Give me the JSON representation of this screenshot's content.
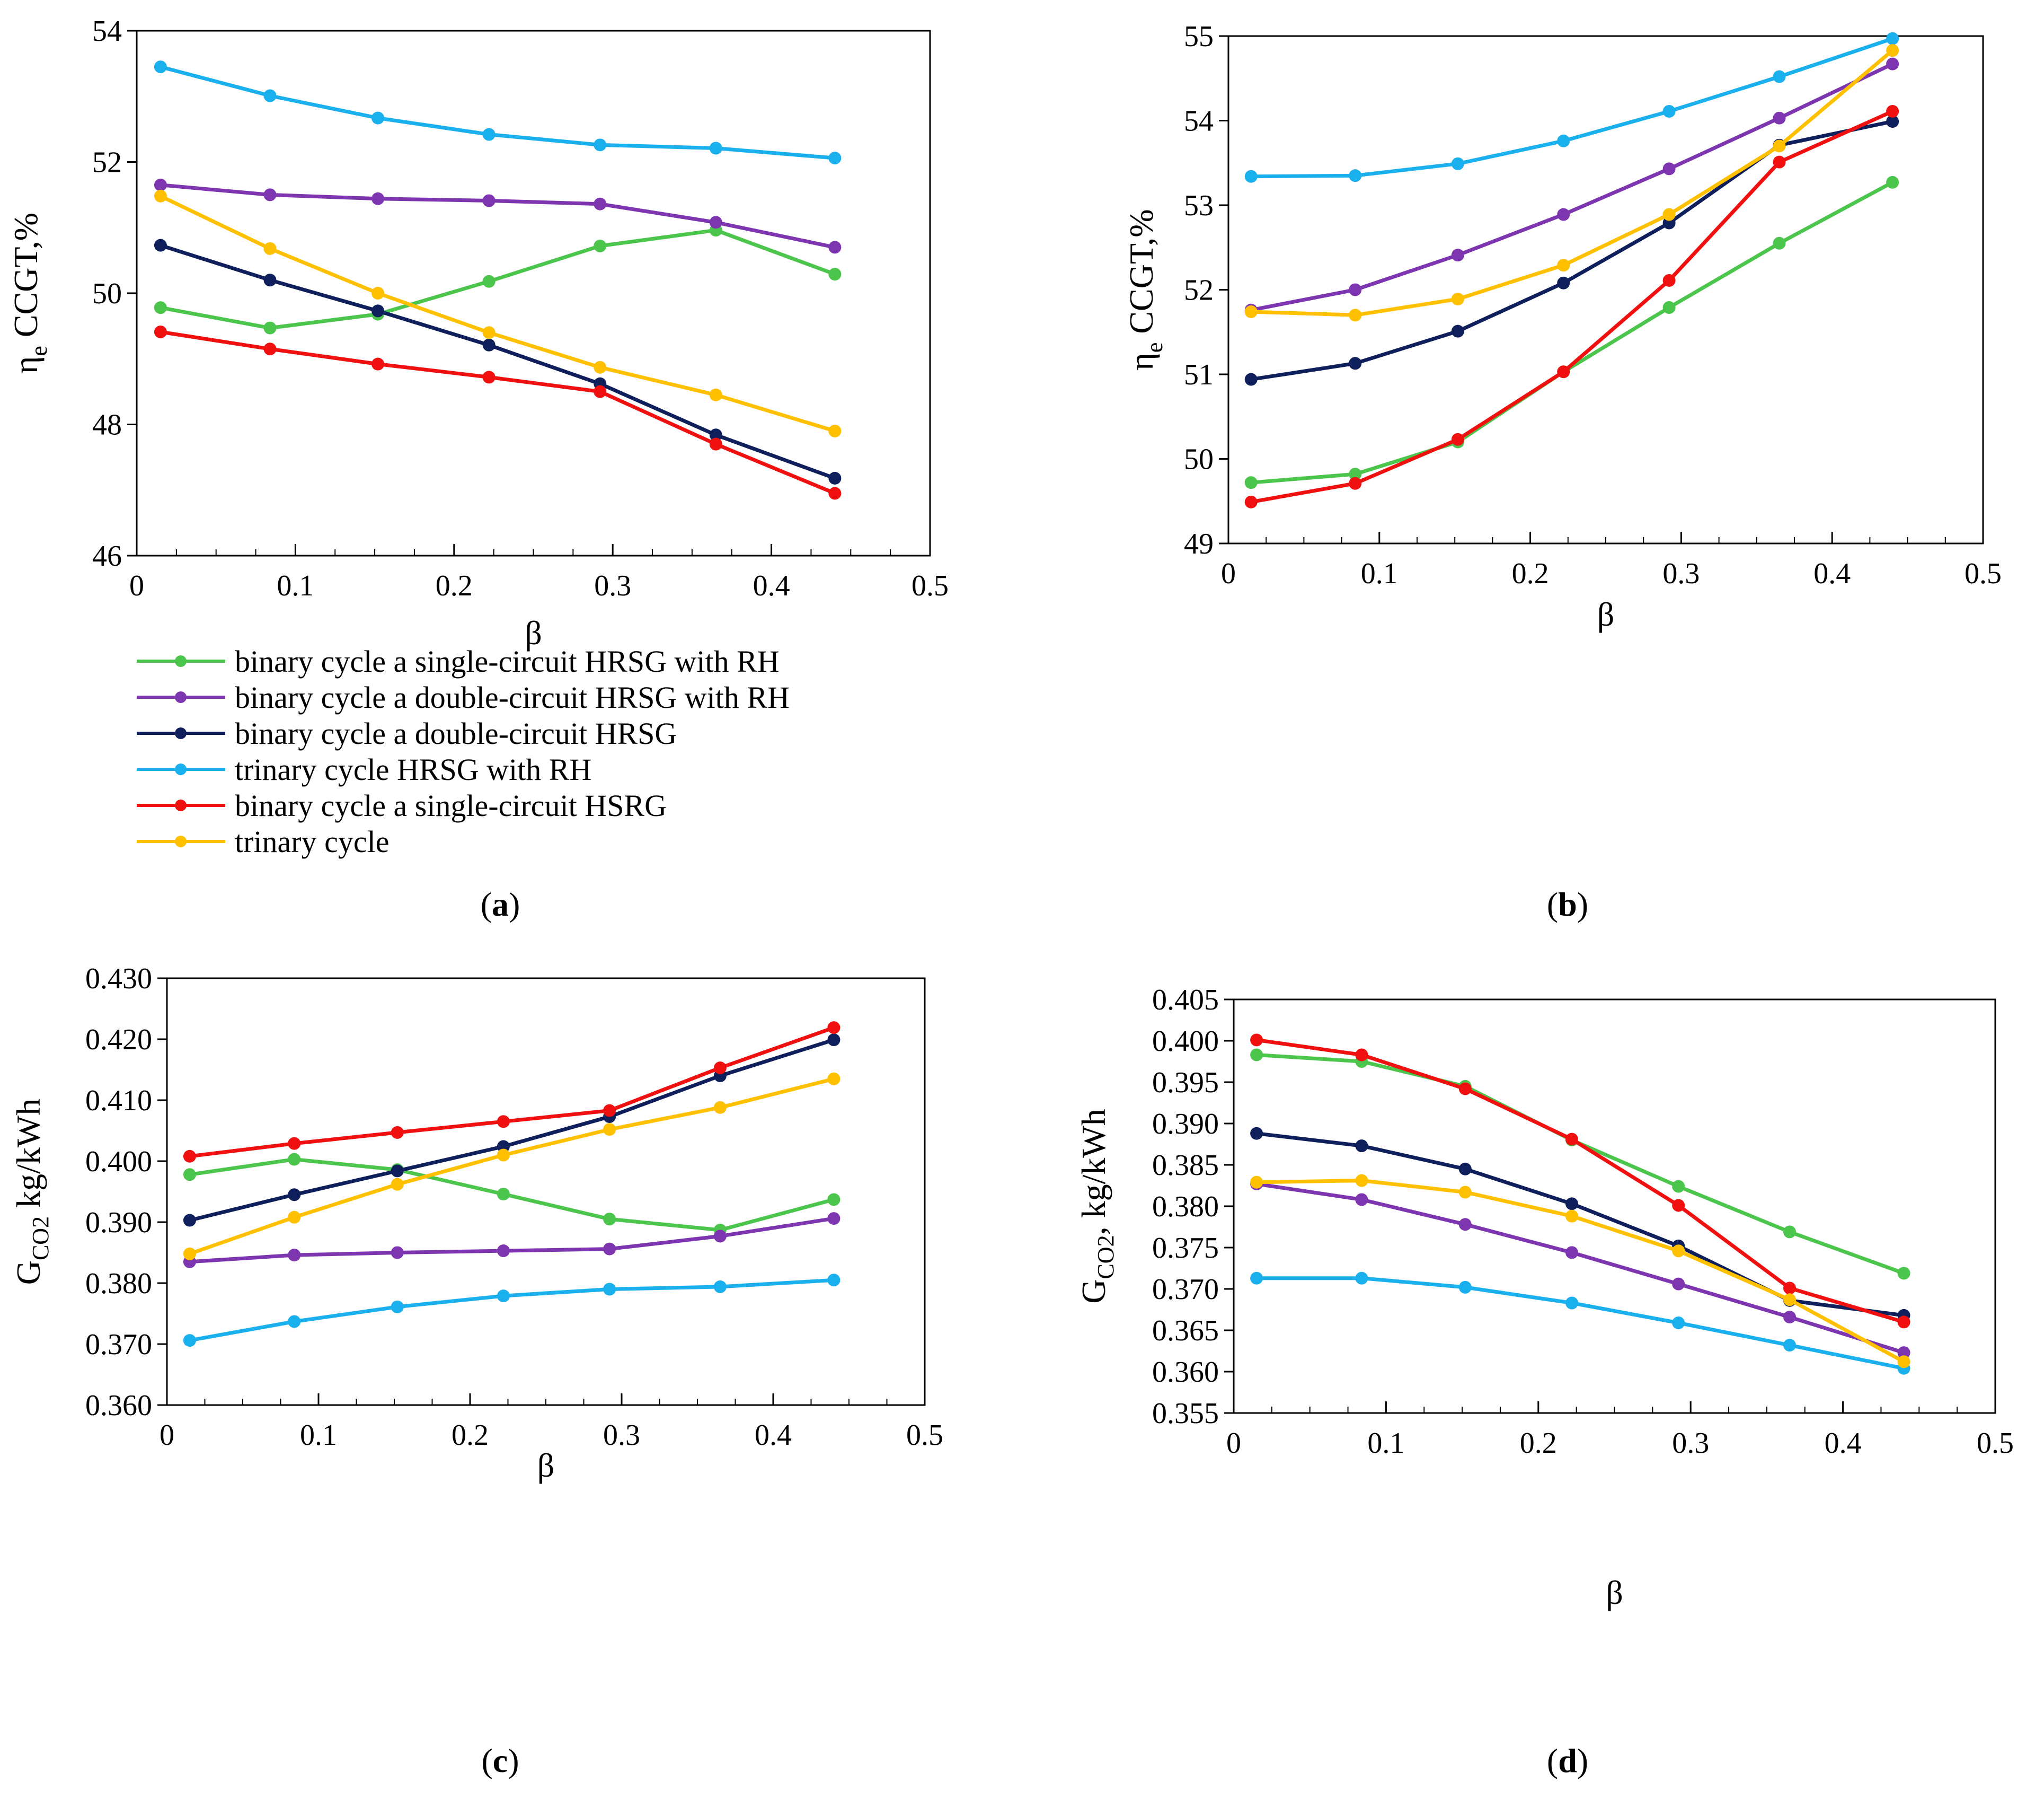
{
  "figure": {
    "series_colors": {
      "s1": "#4CC54C",
      "s2": "#7E35B0",
      "s3": "#0E1F5B",
      "s4": "#1AB0EE",
      "s5": "#F01010",
      "s6": "#FFC000"
    },
    "legend": [
      {
        "key": "s1",
        "label": "binary cycle a single-circuit HRSG with RH"
      },
      {
        "key": "s2",
        "label": "binary cycle a double-circuit HRSG with RH"
      },
      {
        "key": "s3",
        "label": "binary cycle a double-circuit HRSG"
      },
      {
        "key": "s4",
        "label": "trinary cycle HRSG with RH"
      },
      {
        "key": "s5",
        "label": "binary cycle a single-circuit HSRG"
      },
      {
        "key": "s6",
        "label": "trinary cycle"
      }
    ]
  },
  "chart_data": [
    {
      "id": "a",
      "type": "line",
      "caption_letter": "a",
      "caption_open": "(",
      "caption_close": ")",
      "xlabel": "β",
      "ylabel": "η",
      "ylabel_sub": "e",
      "ylabel_rest": " CCGT,%",
      "xlim": [
        0,
        0.5
      ],
      "ylim": [
        46,
        54
      ],
      "xticks": [
        "0",
        "0.1",
        "0.2",
        "0.3",
        "0.4",
        "0.5"
      ],
      "yticks": [
        "46",
        "48",
        "50",
        "52",
        "54"
      ],
      "x": [
        0.015,
        0.084,
        0.152,
        0.222,
        0.292,
        0.365,
        0.44
      ],
      "series": [
        {
          "key": "s1",
          "name": "binary cycle a single-circuit HRSG with RH",
          "values": [
            49.78,
            49.47,
            49.68,
            50.18,
            50.72,
            50.96,
            50.29
          ]
        },
        {
          "key": "s2",
          "name": "binary cycle a double-circuit HRSG with RH",
          "values": [
            51.65,
            51.5,
            51.44,
            51.41,
            51.36,
            51.08,
            50.7
          ]
        },
        {
          "key": "s3",
          "name": "binary cycle a double-circuit HRSG",
          "values": [
            50.73,
            50.2,
            49.73,
            49.21,
            48.62,
            47.84,
            47.18
          ]
        },
        {
          "key": "s4",
          "name": "trinary cycle HRSG with RH",
          "values": [
            53.45,
            53.01,
            52.67,
            52.42,
            52.26,
            52.21,
            52.06
          ]
        },
        {
          "key": "s5",
          "name": "binary cycle a single-circuit HSRG",
          "values": [
            49.41,
            49.15,
            48.92,
            48.72,
            48.5,
            47.7,
            46.95
          ]
        },
        {
          "key": "s6",
          "name": "trinary cycle",
          "values": [
            51.48,
            50.68,
            50.0,
            49.4,
            48.87,
            48.45,
            47.9
          ]
        }
      ]
    },
    {
      "id": "b",
      "type": "line",
      "caption_letter": "b",
      "caption_open": "(",
      "caption_close": ")",
      "xlabel": "β",
      "ylabel": "η",
      "ylabel_sub": "e",
      "ylabel_rest": " CCGT,%",
      "xlim": [
        0,
        0.5
      ],
      "ylim": [
        49,
        55
      ],
      "xticks": [
        "0",
        "0.1",
        "0.2",
        "0.3",
        "0.4",
        "0.5"
      ],
      "yticks": [
        "49",
        "50",
        "51",
        "52",
        "53",
        "54",
        "55"
      ],
      "x": [
        0.015,
        0.084,
        0.152,
        0.222,
        0.292,
        0.365,
        0.44
      ],
      "series": [
        {
          "key": "s1",
          "name": "binary cycle a single-circuit HRSG with RH",
          "values": [
            49.72,
            49.82,
            50.2,
            51.03,
            51.79,
            52.55,
            53.27
          ]
        },
        {
          "key": "s2",
          "name": "binary cycle a double-circuit HRSG with RH",
          "values": [
            51.76,
            52.0,
            52.41,
            52.89,
            53.43,
            54.03,
            54.67
          ]
        },
        {
          "key": "s3",
          "name": "binary cycle a double-circuit HRSG",
          "values": [
            50.94,
            51.13,
            51.51,
            52.08,
            52.79,
            53.71,
            53.99
          ]
        },
        {
          "key": "s4",
          "name": "trinary cycle HRSG with RH",
          "values": [
            53.34,
            53.35,
            53.49,
            53.76,
            54.11,
            54.52,
            54.97
          ]
        },
        {
          "key": "s5",
          "name": "binary cycle a single-circuit HSRG",
          "values": [
            49.49,
            49.71,
            50.23,
            51.03,
            52.11,
            53.51,
            54.11
          ]
        },
        {
          "key": "s6",
          "name": "trinary cycle",
          "values": [
            51.74,
            51.7,
            51.89,
            52.29,
            52.89,
            53.7,
            54.83
          ]
        }
      ]
    },
    {
      "id": "c",
      "type": "line",
      "caption_letter": "c",
      "caption_open": "(",
      "caption_close": ")",
      "xlabel": "β",
      "ylabel": "G",
      "ylabel_sub": "CO2",
      "ylabel_rest": " kg/kWh",
      "xlim": [
        0,
        0.5
      ],
      "ylim": [
        0.36,
        0.43
      ],
      "xticks": [
        "0",
        "0.1",
        "0.2",
        "0.3",
        "0.4",
        "0.5"
      ],
      "yticks": [
        "0.360",
        "0.370",
        "0.380",
        "0.390",
        "0.400",
        "0.410",
        "0.420",
        "0.430"
      ],
      "x": [
        0.015,
        0.084,
        0.152,
        0.222,
        0.292,
        0.365,
        0.44
      ],
      "series": [
        {
          "key": "s1",
          "name": "binary cycle a single-circuit HRSG with RH",
          "values": [
            0.3978,
            0.4003,
            0.3986,
            0.3946,
            0.3905,
            0.3887,
            0.3937
          ]
        },
        {
          "key": "s2",
          "name": "binary cycle a double-circuit HRSG with RH",
          "values": [
            0.3835,
            0.3846,
            0.385,
            0.3853,
            0.3856,
            0.3877,
            0.3906
          ]
        },
        {
          "key": "s3",
          "name": "binary cycle a double-circuit HRSG",
          "values": [
            0.3903,
            0.3945,
            0.3984,
            0.4024,
            0.4073,
            0.414,
            0.4199
          ]
        },
        {
          "key": "s4",
          "name": "trinary cycle HRSG with RH",
          "values": [
            0.3706,
            0.3737,
            0.3761,
            0.3779,
            0.379,
            0.3794,
            0.3805
          ]
        },
        {
          "key": "s5",
          "name": "binary cycle a single-circuit HSRG",
          "values": [
            0.4008,
            0.4029,
            0.4047,
            0.4065,
            0.4083,
            0.4153,
            0.4219
          ]
        },
        {
          "key": "s6",
          "name": "trinary cycle",
          "values": [
            0.3848,
            0.3908,
            0.3962,
            0.401,
            0.4052,
            0.4088,
            0.4135
          ]
        }
      ]
    },
    {
      "id": "d",
      "type": "line",
      "caption_letter": "d",
      "caption_open": "(",
      "caption_close": ")",
      "xlabel": "β",
      "ylabel": "G",
      "ylabel_sub": "CO2",
      "ylabel_rest": ", kg/kWh",
      "xlim": [
        0,
        0.5
      ],
      "ylim": [
        0.355,
        0.405
      ],
      "xticks": [
        "0",
        "0.1",
        "0.2",
        "0.3",
        "0.4",
        "0.5"
      ],
      "yticks": [
        "0.355",
        "0.360",
        "0.365",
        "0.370",
        "0.375",
        "0.380",
        "0.385",
        "0.390",
        "0.395",
        "0.400",
        "0.405"
      ],
      "x": [
        0.015,
        0.084,
        0.152,
        0.222,
        0.292,
        0.365,
        0.44
      ],
      "series": [
        {
          "key": "s1",
          "name": "binary cycle a single-circuit HRSG with RH",
          "values": [
            0.3983,
            0.3975,
            0.3945,
            0.388,
            0.3824,
            0.3769,
            0.3719
          ]
        },
        {
          "key": "s2",
          "name": "binary cycle a double-circuit HRSG with RH",
          "values": [
            0.3827,
            0.3808,
            0.3778,
            0.3744,
            0.3706,
            0.3666,
            0.3623
          ]
        },
        {
          "key": "s3",
          "name": "binary cycle a double-circuit HRSG",
          "values": [
            0.3888,
            0.3873,
            0.3845,
            0.3803,
            0.3752,
            0.3686,
            0.3668
          ]
        },
        {
          "key": "s4",
          "name": "trinary cycle HRSG with RH",
          "values": [
            0.3713,
            0.3713,
            0.3702,
            0.3683,
            0.3659,
            0.3632,
            0.3604
          ]
        },
        {
          "key": "s5",
          "name": "binary cycle a single-circuit HSRG",
          "values": [
            0.4001,
            0.3983,
            0.3942,
            0.3881,
            0.3801,
            0.3701,
            0.366
          ]
        },
        {
          "key": "s6",
          "name": "trinary cycle",
          "values": [
            0.3829,
            0.3831,
            0.3817,
            0.3788,
            0.3746,
            0.3687,
            0.3612
          ]
        }
      ]
    }
  ]
}
